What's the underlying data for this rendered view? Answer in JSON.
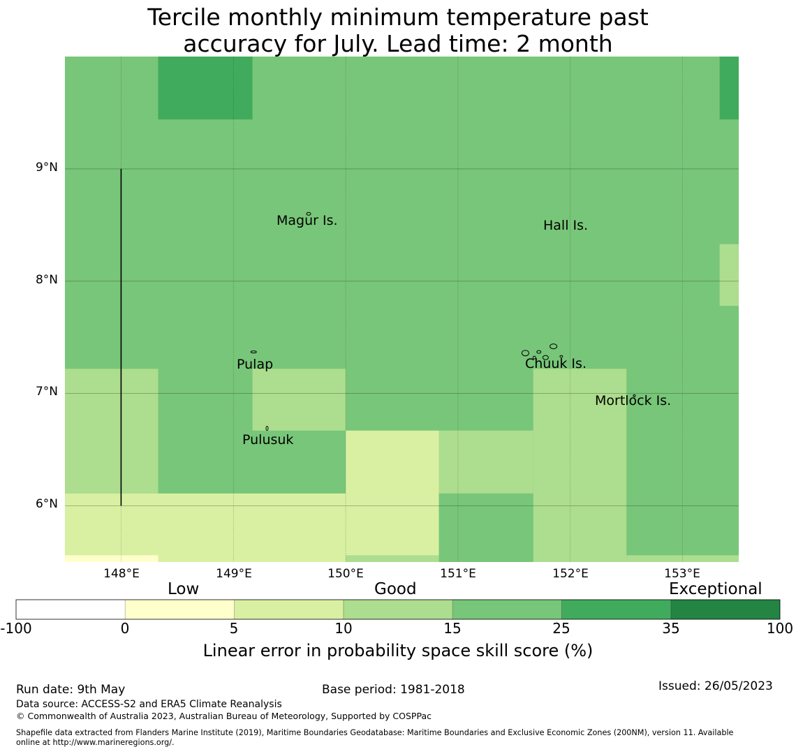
{
  "title": {
    "line1": "Tercile monthly minimum temperature past",
    "line2": "accuracy for July. Lead time: 2 month"
  },
  "map": {
    "lon_range": [
      147.5,
      153.5
    ],
    "lat_range": [
      5.5,
      10.0
    ],
    "lon_ticks": [
      "148°E",
      "149°E",
      "150°E",
      "151°E",
      "152°E",
      "153°E"
    ],
    "lat_ticks": [
      "9°N",
      "8°N",
      "7°N",
      "6°N"
    ],
    "grid": true,
    "boundary_line": {
      "lon": 148.0,
      "lat_from": 6.0,
      "lat_to": 9.0
    },
    "places": [
      {
        "name": "Magur Is.",
        "lon": 149.68,
        "lat": 8.53
      },
      {
        "name": "Hall Is.",
        "lon": 151.98,
        "lat": 8.49
      },
      {
        "name": "Pulap",
        "lon": 149.42,
        "lat": 7.25
      },
      {
        "name": "Chuuk Is.",
        "lon": 151.85,
        "lat": 7.25
      },
      {
        "name": "Mortlock Is.",
        "lon": 152.6,
        "lat": 6.92
      },
      {
        "name": "Pulusuk",
        "lon": 149.33,
        "lat": 6.59
      }
    ],
    "cells": [
      {
        "lon": [
          147.5,
          153.5
        ],
        "lat": [
          5.5,
          10.0
        ],
        "category": 4
      },
      {
        "lon": [
          148.33,
          149.17
        ],
        "lat": [
          9.44,
          10.0
        ],
        "category": 5
      },
      {
        "lon": [
          153.33,
          153.5
        ],
        "lat": [
          9.44,
          10.0
        ],
        "category": 5
      },
      {
        "lon": [
          153.33,
          153.5
        ],
        "lat": [
          7.78,
          8.33
        ],
        "category": 3
      },
      {
        "lon": [
          147.5,
          148.33
        ],
        "lat": [
          6.11,
          7.22
        ],
        "category": 3
      },
      {
        "lon": [
          149.17,
          150.0
        ],
        "lat": [
          6.67,
          7.22
        ],
        "category": 3
      },
      {
        "lon": [
          151.67,
          152.5
        ],
        "lat": [
          5.5,
          7.22
        ],
        "category": 3
      },
      {
        "lon": [
          150.83,
          151.67
        ],
        "lat": [
          6.11,
          6.67
        ],
        "category": 3
      },
      {
        "lon": [
          150.0,
          150.83
        ],
        "lat": [
          5.5,
          6.67
        ],
        "category": 2
      },
      {
        "lon": [
          147.5,
          150.0
        ],
        "lat": [
          5.5,
          6.11
        ],
        "category": 2
      },
      {
        "lon": [
          150.83,
          151.67
        ],
        "lat": [
          5.5,
          6.11
        ],
        "category": 4
      },
      {
        "lon": [
          147.5,
          148.33
        ],
        "lat": [
          5.5,
          5.56
        ],
        "category": 1
      },
      {
        "lon": [
          150.0,
          150.83
        ],
        "lat": [
          5.5,
          5.56
        ],
        "category": 3
      },
      {
        "lon": [
          152.5,
          153.5
        ],
        "lat": [
          5.5,
          5.56
        ],
        "category": 3
      }
    ]
  },
  "colorbar": {
    "bounds": [
      "-100",
      "0",
      "5",
      "10",
      "15",
      "25",
      "35",
      "100"
    ],
    "colors": [
      "#ffffff",
      "#ffffcc",
      "#d9f0a3",
      "#addd8e",
      "#78c679",
      "#41ab5d",
      "#238443"
    ],
    "categories": [
      "Low",
      "Good",
      "Exceptional"
    ],
    "label": "Linear error in probability space skill score (%)"
  },
  "footer": {
    "run_date": "Run date: 9th May",
    "base_period": "Base period: 1981-2018",
    "issued": "Issued: 26/05/2023",
    "data_source": "Data source: ACCESS-S2 and ERA5 Climate Reanalysis",
    "copyright": "© Commonwealth of Australia 2023, Australian Bureau of Meteorology, Supported by COSPPac",
    "shapefile_line1": "Shapefile data extracted from Flanders Marine Institute (2019), Maritime Boundaries Geodatabase: Maritime Boundaries and Exclusive Economic Zones (200NM), version 11. Available",
    "shapefile_line2": "online at http://www.marineregions.org/."
  }
}
